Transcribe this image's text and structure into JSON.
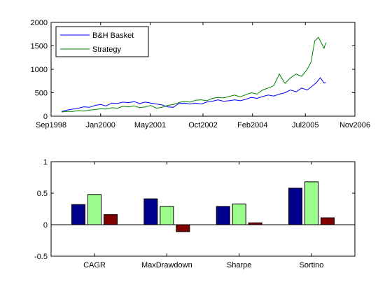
{
  "chart_data": [
    {
      "type": "line",
      "x_ticks": [
        "Sep1998",
        "Jan2000",
        "May2001",
        "Oct2002",
        "Feb2004",
        "Jul2005",
        "Nov2006"
      ],
      "x_tick_values": [
        1998.67,
        2000.0,
        2001.33,
        2002.75,
        2004.08,
        2005.5,
        2006.83
      ],
      "xlim": [
        1998.67,
        2006.83
      ],
      "ylim": [
        0,
        2000
      ],
      "y_ticks": [
        "0",
        "500",
        "1000",
        "1500",
        "2000"
      ],
      "y_tick_values": [
        0,
        500,
        1000,
        1500,
        2000
      ],
      "legend_position": "top-left",
      "series": [
        {
          "name": "B&H Basket",
          "color": "#0000ff",
          "x": [
            1998.95,
            1999.1,
            1999.25,
            1999.4,
            1999.55,
            1999.7,
            1999.85,
            2000.0,
            2000.15,
            2000.3,
            2000.45,
            2000.6,
            2000.75,
            2000.9,
            2001.05,
            2001.2,
            2001.35,
            2001.5,
            2001.65,
            2001.8,
            2001.95,
            2002.1,
            2002.25,
            2002.4,
            2002.55,
            2002.7,
            2002.85,
            2003.0,
            2003.15,
            2003.3,
            2003.45,
            2003.6,
            2003.75,
            2003.9,
            2004.05,
            2004.2,
            2004.35,
            2004.5,
            2004.65,
            2004.8,
            2004.95,
            2005.1,
            2005.25,
            2005.4,
            2005.55,
            2005.7,
            2005.8,
            2005.9,
            2006.0,
            2006.05
          ],
          "y": [
            100,
            130,
            150,
            170,
            200,
            190,
            230,
            250,
            220,
            280,
            270,
            300,
            290,
            310,
            270,
            300,
            280,
            260,
            240,
            200,
            190,
            270,
            280,
            260,
            280,
            260,
            300,
            320,
            350,
            320,
            330,
            350,
            330,
            360,
            400,
            380,
            420,
            450,
            430,
            470,
            500,
            560,
            520,
            600,
            560,
            650,
            720,
            820,
            710,
            720
          ]
        },
        {
          "name": "Strategy",
          "color": "#008000",
          "x": [
            1998.95,
            1999.1,
            1999.25,
            1999.4,
            1999.55,
            1999.7,
            1999.85,
            2000.0,
            2000.15,
            2000.3,
            2000.45,
            2000.6,
            2000.75,
            2000.9,
            2001.05,
            2001.2,
            2001.35,
            2001.5,
            2001.65,
            2001.8,
            2001.95,
            2002.1,
            2002.25,
            2002.4,
            2002.55,
            2002.7,
            2002.85,
            2003.0,
            2003.15,
            2003.3,
            2003.45,
            2003.6,
            2003.75,
            2003.9,
            2004.05,
            2004.2,
            2004.35,
            2004.5,
            2004.65,
            2004.8,
            2004.95,
            2005.1,
            2005.25,
            2005.4,
            2005.55,
            2005.65,
            2005.75,
            2005.85,
            2006.0,
            2006.05
          ],
          "y": [
            90,
            100,
            100,
            120,
            110,
            130,
            140,
            160,
            150,
            180,
            170,
            210,
            200,
            220,
            180,
            200,
            230,
            170,
            190,
            230,
            250,
            290,
            320,
            300,
            340,
            350,
            330,
            380,
            400,
            390,
            420,
            450,
            410,
            460,
            500,
            470,
            560,
            600,
            650,
            900,
            700,
            820,
            900,
            850,
            1000,
            1150,
            1600,
            1680,
            1450,
            1570
          ]
        }
      ]
    },
    {
      "type": "bar",
      "categories": [
        "CAGR",
        "MaxDrawdown",
        "Sharpe",
        "Sortino"
      ],
      "ylim": [
        -0.5,
        1
      ],
      "y_ticks": [
        "-0.5",
        "0",
        "0.5",
        "1"
      ],
      "y_tick_values": [
        -0.5,
        0,
        0.5,
        1
      ],
      "series": [
        {
          "color": "#00008f",
          "values": [
            0.32,
            0.41,
            0.29,
            0.58
          ]
        },
        {
          "color": "#9afc8a",
          "values": [
            0.48,
            0.29,
            0.33,
            0.68
          ]
        },
        {
          "color": "#800000",
          "values": [
            0.16,
            -0.11,
            0.03,
            0.11
          ]
        }
      ]
    }
  ]
}
